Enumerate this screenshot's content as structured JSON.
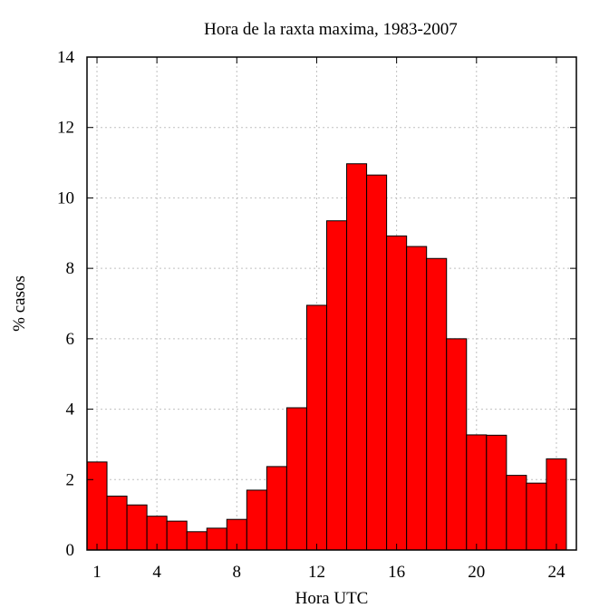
{
  "chart_data": {
    "type": "bar",
    "title": "Hora de la raxta maxima, 1983-2007",
    "xlabel": "Hora UTC",
    "ylabel": "% casos",
    "x_ticks": [
      1,
      4,
      8,
      12,
      16,
      20,
      24
    ],
    "y_ticks": [
      0,
      2,
      4,
      6,
      8,
      10,
      12,
      14
    ],
    "ylim": [
      0,
      14
    ],
    "grid": true,
    "bar_color": "#ff0000",
    "categories": [
      1,
      2,
      3,
      4,
      5,
      6,
      7,
      8,
      9,
      10,
      11,
      12,
      13,
      14,
      15,
      16,
      17,
      18,
      19,
      20,
      21,
      22,
      23,
      24
    ],
    "values": [
      2.5,
      1.53,
      1.28,
      0.96,
      0.82,
      0.52,
      0.62,
      0.87,
      1.7,
      2.37,
      4.04,
      6.95,
      9.35,
      10.97,
      10.65,
      8.92,
      8.62,
      8.28,
      6.0,
      3.27,
      3.26,
      2.12,
      1.9,
      2.59
    ]
  }
}
